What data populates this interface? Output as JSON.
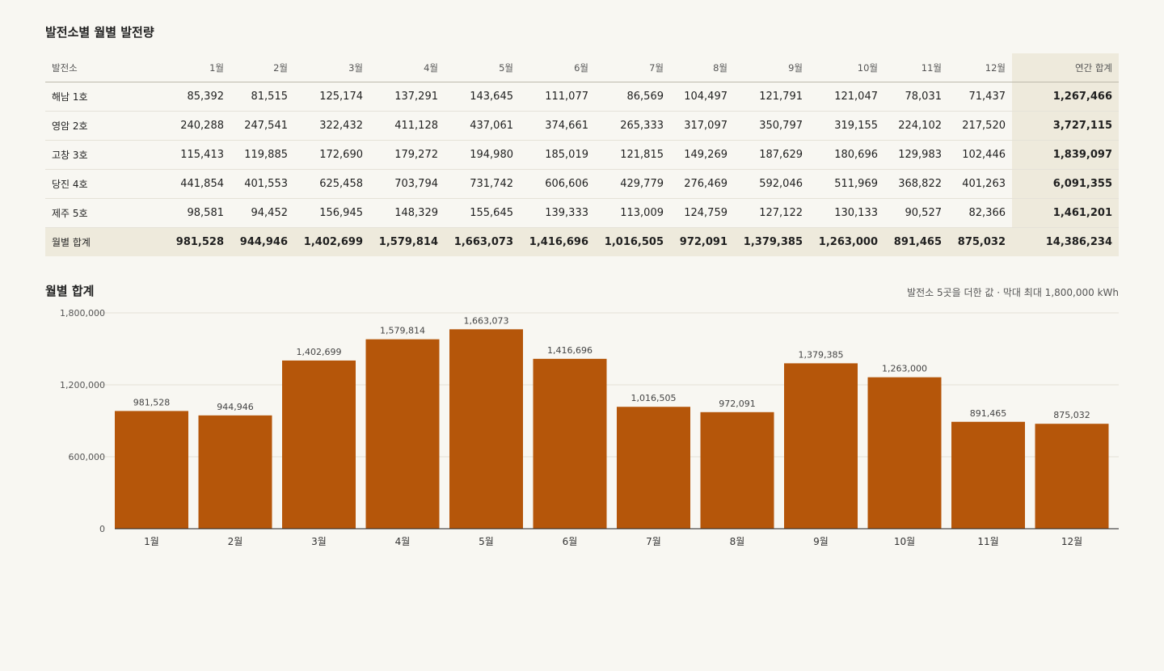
{
  "table": {
    "title": "발전소별 월별 발전량",
    "header": {
      "plant": "발전소",
      "months": [
        "1월",
        "2월",
        "3월",
        "4월",
        "5월",
        "6월",
        "7월",
        "8월",
        "9월",
        "10월",
        "11월",
        "12월"
      ],
      "total": "연간 합계"
    },
    "rows": [
      {
        "name": "해남 1호",
        "values": [
          "85,392",
          "81,515",
          "125,174",
          "137,291",
          "143,645",
          "111,077",
          "86,569",
          "104,497",
          "121,791",
          "121,047",
          "78,031",
          "71,437"
        ],
        "total": "1,267,466"
      },
      {
        "name": "영암 2호",
        "values": [
          "240,288",
          "247,541",
          "322,432",
          "411,128",
          "437,061",
          "374,661",
          "265,333",
          "317,097",
          "350,797",
          "319,155",
          "224,102",
          "217,520"
        ],
        "total": "3,727,115"
      },
      {
        "name": "고창 3호",
        "values": [
          "115,413",
          "119,885",
          "172,690",
          "179,272",
          "194,980",
          "185,019",
          "121,815",
          "149,269",
          "187,629",
          "180,696",
          "129,983",
          "102,446"
        ],
        "total": "1,839,097"
      },
      {
        "name": "당진 4호",
        "values": [
          "441,854",
          "401,553",
          "625,458",
          "703,794",
          "731,742",
          "606,606",
          "429,779",
          "276,469",
          "592,046",
          "511,969",
          "368,822",
          "401,263"
        ],
        "total": "6,091,355"
      },
      {
        "name": "제주 5호",
        "values": [
          "98,581",
          "94,452",
          "156,945",
          "148,329",
          "155,645",
          "139,333",
          "113,009",
          "124,759",
          "127,122",
          "130,133",
          "90,527",
          "82,366"
        ],
        "total": "1,461,201"
      }
    ],
    "sum_row": {
      "name": "월별 합계",
      "values": [
        "981,528",
        "944,946",
        "1,402,699",
        "1,579,814",
        "1,663,073",
        "1,416,696",
        "1,016,505",
        "972,091",
        "1,379,385",
        "1,263,000",
        "891,465",
        "875,032"
      ],
      "total": "14,386,234"
    }
  },
  "chart": {
    "title": "월별 합계",
    "note": "발전소 5곳을 더한 값 · 막대 최대 1,800,000 kWh"
  },
  "chart_data": {
    "type": "bar",
    "categories": [
      "1월",
      "2월",
      "3월",
      "4월",
      "5월",
      "6월",
      "7월",
      "8월",
      "9월",
      "10월",
      "11월",
      "12월"
    ],
    "values": [
      981528,
      944946,
      1402699,
      1579814,
      1663073,
      1416696,
      1016505,
      972091,
      1379385,
      1263000,
      891465,
      875032
    ],
    "value_labels": [
      "981,528",
      "944,946",
      "1,402,699",
      "1,579,814",
      "1,663,073",
      "1,416,696",
      "1,016,505",
      "972,091",
      "1,379,385",
      "1,263,000",
      "891,465",
      "875,032"
    ],
    "ylim": [
      0,
      1800000
    ],
    "yticks": [
      0,
      600000,
      1200000,
      1800000
    ],
    "ytick_labels": [
      "0",
      "600,000",
      "1,200,000",
      "1,800,000"
    ],
    "bar_color": "#b5560a",
    "grid": true
  }
}
